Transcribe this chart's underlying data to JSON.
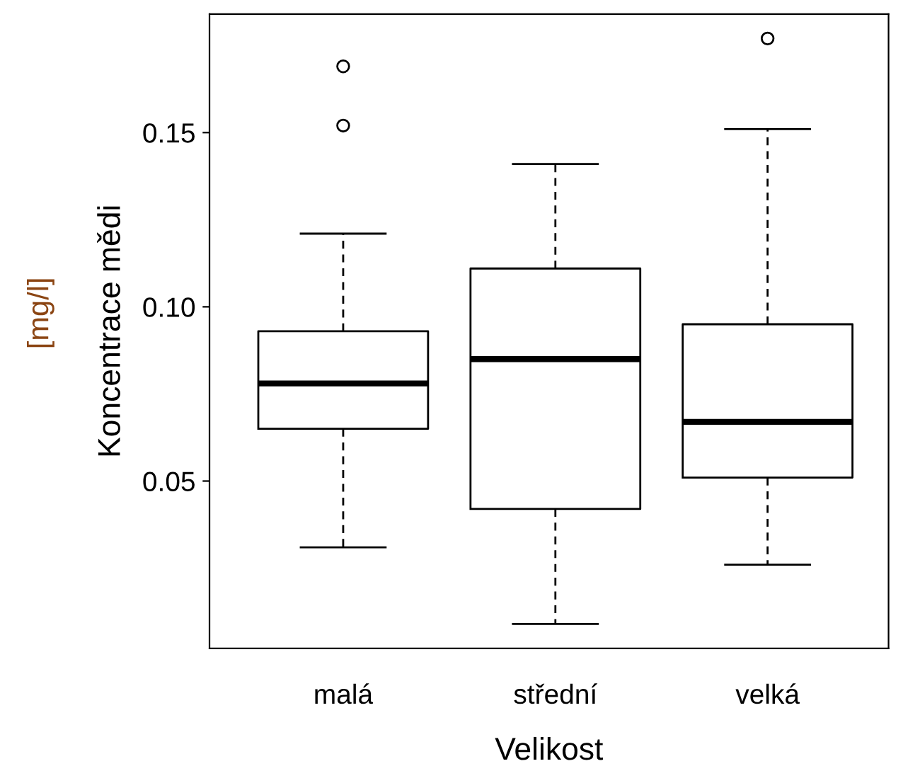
{
  "chart_data": {
    "type": "box",
    "xlabel": "Velikost",
    "ylabel": "Koncentrace mědi",
    "annotations": [
      "[mg/l]"
    ],
    "categories": [
      "malá",
      "střední",
      "velká"
    ],
    "boxes": [
      {
        "low": 0.031,
        "q1": 0.065,
        "median": 0.078,
        "q3": 0.093,
        "high": 0.121,
        "outliers": [
          0.152,
          0.169
        ]
      },
      {
        "low": 0.009,
        "q1": 0.042,
        "median": 0.085,
        "q3": 0.111,
        "high": 0.141
      },
      {
        "low": 0.026,
        "q1": 0.051,
        "median": 0.067,
        "q3": 0.095,
        "high": 0.151,
        "outliers": [
          0.177
        ]
      }
    ],
    "ylim": [
      0.002,
      0.184
    ],
    "yticks": [
      {
        "value": 0.05,
        "label": "0.05"
      },
      {
        "value": 0.1,
        "label": "0.10"
      },
      {
        "value": 0.15,
        "label": "0.15"
      }
    ],
    "grid": false
  }
}
